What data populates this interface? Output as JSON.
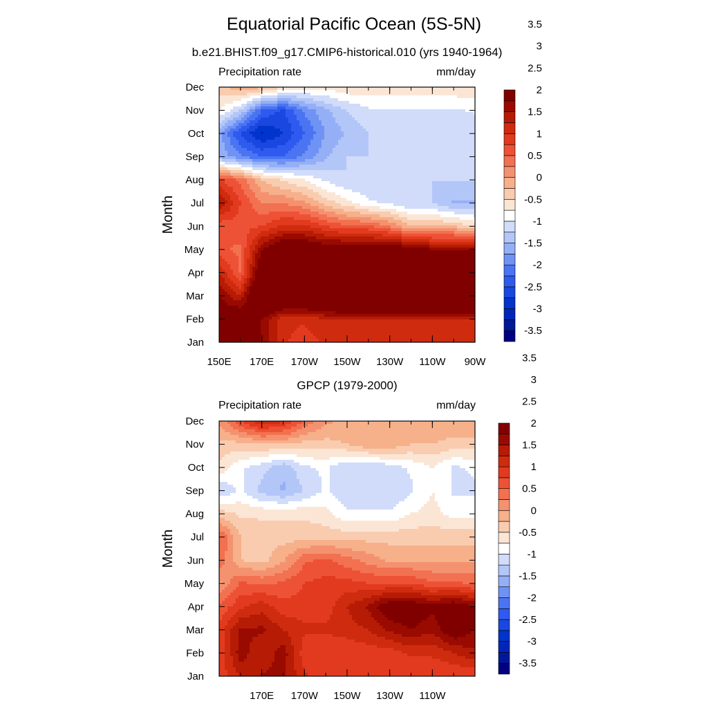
{
  "title": "Equatorial Pacific Ocean (5S-5N)",
  "chart_data": [
    {
      "type": "heatmap",
      "title": "b.e21.BHIST.f09_g17.CMIP6-historical.010 (yrs 1940-1964)",
      "left_string": "Precipitation rate",
      "right_string": "mm/day",
      "ylabel": "Month",
      "x_tick_labels": [
        "150E",
        "170E",
        "170W",
        "150W",
        "130W",
        "110W",
        "90W"
      ],
      "x_lon": [
        150,
        170,
        190,
        210,
        230,
        250,
        270
      ],
      "xlim": [
        150,
        270
      ],
      "y_tick_labels": [
        "Jan",
        "Feb",
        "Mar",
        "Apr",
        "May",
        "Jun",
        "Jul",
        "Aug",
        "Sep",
        "Oct",
        "Nov",
        "Dec"
      ],
      "colorbar_levels": [
        -3.75,
        -3.5,
        -3.25,
        -3,
        -2.75,
        -2.5,
        -2.25,
        -2,
        -1.75,
        -1.5,
        -1.25,
        -1,
        -0.75,
        -0.5,
        -0.25,
        0,
        0.25,
        0.5,
        0.75,
        1,
        1.25,
        1.5,
        1.75,
        2,
        2.25,
        2.5,
        2.75,
        3,
        3.25,
        3.5,
        3.75
      ],
      "colorbar_labels": [
        "-3.5",
        "-3",
        "-2.5",
        "-2",
        "-1.5",
        "-1",
        "-0.5",
        "0",
        "0.5",
        "1",
        "1.5",
        "2",
        "2.5",
        "3",
        "3.5"
      ],
      "grid_lon": [
        150,
        160,
        170,
        180,
        190,
        200,
        210,
        220,
        230,
        240,
        250,
        260,
        270
      ],
      "values": [
        [
          2.0,
          1.8,
          1.5,
          0.8,
          0.6,
          0.8,
          0.8,
          0.8,
          0.8,
          0.8,
          0.8,
          0.8,
          0.8
        ],
        [
          1.8,
          2.0,
          1.5,
          0.8,
          0.8,
          1.0,
          1.0,
          1.0,
          1.0,
          1.0,
          1.0,
          1.0,
          1.0
        ],
        [
          1.5,
          1.0,
          2.5,
          2.5,
          2.5,
          2.6,
          3.0,
          3.0,
          3.3,
          3.0,
          3.3,
          3.3,
          3.2
        ],
        [
          1.0,
          0.2,
          2.0,
          2.5,
          2.5,
          2.6,
          3.0,
          3.3,
          3.5,
          3.0,
          3.0,
          3.0,
          3.0
        ],
        [
          0.3,
          0.2,
          1.5,
          2.0,
          2.0,
          1.8,
          1.8,
          1.8,
          1.8,
          1.8,
          1.5,
          1.5,
          1.5
        ],
        [
          0.3,
          0.4,
          0.5,
          0.8,
          0.8,
          0.5,
          0.3,
          0.3,
          0.0,
          -0.5,
          -0.5,
          -0.5,
          -0.8
        ],
        [
          1.3,
          0.5,
          0.0,
          0.0,
          -0.2,
          -0.6,
          -0.9,
          -1.2,
          -1.3,
          -1.5,
          -1.5,
          -1.8,
          -1.8
        ],
        [
          0.5,
          0.2,
          -0.5,
          -0.8,
          -1.0,
          -1.3,
          -1.5,
          -1.5,
          -1.5,
          -1.5,
          -1.5,
          -1.5,
          -1.5
        ],
        [
          -1.8,
          -2.2,
          -2.5,
          -2.5,
          -2.2,
          -1.8,
          -1.5,
          -1.5,
          -1.5,
          -1.5,
          -1.5,
          -1.5,
          -1.5
        ],
        [
          -1.9,
          -2.8,
          -3.3,
          -3.0,
          -2.5,
          -2.0,
          -1.7,
          -1.5,
          -1.5,
          -1.5,
          -1.5,
          -1.5,
          -1.5
        ],
        [
          -1.0,
          -1.5,
          -2.5,
          -2.8,
          -2.2,
          -1.8,
          -1.5,
          -1.3,
          -1.3,
          -1.3,
          -1.3,
          -1.3,
          -1.2
        ],
        [
          -0.6,
          -0.3,
          -0.4,
          -0.7,
          -0.9,
          -0.9,
          -0.8,
          -0.8,
          -0.8,
          -0.8,
          -0.8,
          -0.8,
          -0.8
        ]
      ]
    },
    {
      "type": "heatmap",
      "title": "GPCP (1979-2000)",
      "left_string": "Precipitation rate",
      "right_string": "mm/day",
      "ylabel": "Month",
      "x_tick_labels": [
        "170E",
        "170W",
        "150W",
        "130W",
        "110W"
      ],
      "x_lon": [
        170,
        190,
        210,
        230,
        250
      ],
      "xlim": [
        150,
        270
      ],
      "y_tick_labels": [
        "Jan",
        "Feb",
        "Mar",
        "Apr",
        "May",
        "Jun",
        "Jul",
        "Aug",
        "Sep",
        "Oct",
        "Nov",
        "Dec"
      ],
      "colorbar_levels": [
        -3.75,
        -3.5,
        -3.25,
        -3,
        -2.75,
        -2.5,
        -2.25,
        -2,
        -1.75,
        -1.5,
        -1.25,
        -1,
        -0.75,
        -0.5,
        -0.25,
        0,
        0.25,
        0.5,
        0.75,
        1,
        1.25,
        1.5,
        1.75,
        2,
        2.25,
        2.5,
        2.75,
        3,
        3.25,
        3.5,
        3.75
      ],
      "colorbar_labels": [
        "-3.5",
        "-3",
        "-2.5",
        "-2",
        "-1.5",
        "-1",
        "-0.5",
        "0",
        "0.5",
        "1",
        "1.5",
        "2",
        "2.5",
        "3",
        "3.5"
      ],
      "grid_lon": [
        150,
        160,
        170,
        180,
        190,
        200,
        210,
        220,
        230,
        240,
        250,
        260,
        270
      ],
      "values": [
        [
          0.6,
          1.0,
          1.3,
          1.3,
          0.8,
          0.5,
          0.5,
          0.5,
          0.5,
          0.5,
          0.5,
          0.5,
          0.5
        ],
        [
          0.5,
          1.4,
          1.0,
          1.4,
          0.6,
          0.5,
          0.5,
          0.6,
          0.6,
          0.8,
          0.8,
          1.0,
          1.2
        ],
        [
          0.6,
          1.3,
          1.3,
          1.0,
          0.8,
          0.8,
          0.9,
          1.0,
          1.3,
          1.5,
          1.3,
          1.8,
          1.5
        ],
        [
          0.3,
          0.7,
          0.9,
          0.6,
          0.6,
          0.6,
          1.0,
          1.3,
          1.8,
          1.8,
          1.6,
          1.8,
          1.5
        ],
        [
          -0.3,
          0.3,
          0.2,
          0.3,
          0.5,
          0.6,
          0.6,
          0.5,
          0.5,
          0.5,
          0.3,
          0.3,
          0.2
        ],
        [
          0.2,
          -0.5,
          -0.6,
          -0.3,
          0.2,
          0.3,
          0.1,
          -0.1,
          -0.3,
          -0.3,
          -0.3,
          -0.3,
          -0.3
        ],
        [
          0.3,
          -0.5,
          -0.6,
          -0.6,
          -0.6,
          -0.6,
          -0.6,
          -0.6,
          -0.6,
          -0.6,
          -0.6,
          -0.6,
          -0.6
        ],
        [
          -0.6,
          -0.8,
          -0.8,
          -0.8,
          -0.8,
          -0.9,
          -1.2,
          -1.2,
          -1.2,
          -1.0,
          -0.9,
          -1.1,
          -1.1
        ],
        [
          -1.5,
          -1.2,
          -1.6,
          -1.8,
          -1.5,
          -1.2,
          -1.5,
          -1.5,
          -1.5,
          -1.3,
          -1.0,
          -1.3,
          -1.3
        ],
        [
          -0.8,
          -1.2,
          -1.4,
          -1.7,
          -1.3,
          -1.2,
          -1.5,
          -1.5,
          -1.4,
          -1.2,
          -1.0,
          -1.3,
          -1.2
        ],
        [
          -0.6,
          -0.6,
          -0.5,
          -0.5,
          -0.6,
          -0.6,
          -0.5,
          -0.3,
          -0.3,
          -0.5,
          -0.5,
          -0.6,
          -0.6
        ],
        [
          -0.2,
          0.5,
          1.0,
          0.8,
          0.2,
          -0.2,
          -0.3,
          -0.3,
          -0.3,
          -0.3,
          -0.3,
          -0.3,
          -0.3
        ]
      ]
    }
  ],
  "colors": {
    "palette": [
      "#000080",
      "#001899",
      "#0026b8",
      "#0034cc",
      "#1a47e0",
      "#2e5aef",
      "#4a74f2",
      "#6f92f5",
      "#95aff7",
      "#b3c6f8",
      "#d1dcfa",
      "#ffffff",
      "#fbe6d6",
      "#f9ccb0",
      "#f6b08a",
      "#f49270",
      "#f27150",
      "#ee5236",
      "#e23a1f",
      "#cf2b0e",
      "#b61b05",
      "#990a00",
      "#800000"
    ]
  }
}
